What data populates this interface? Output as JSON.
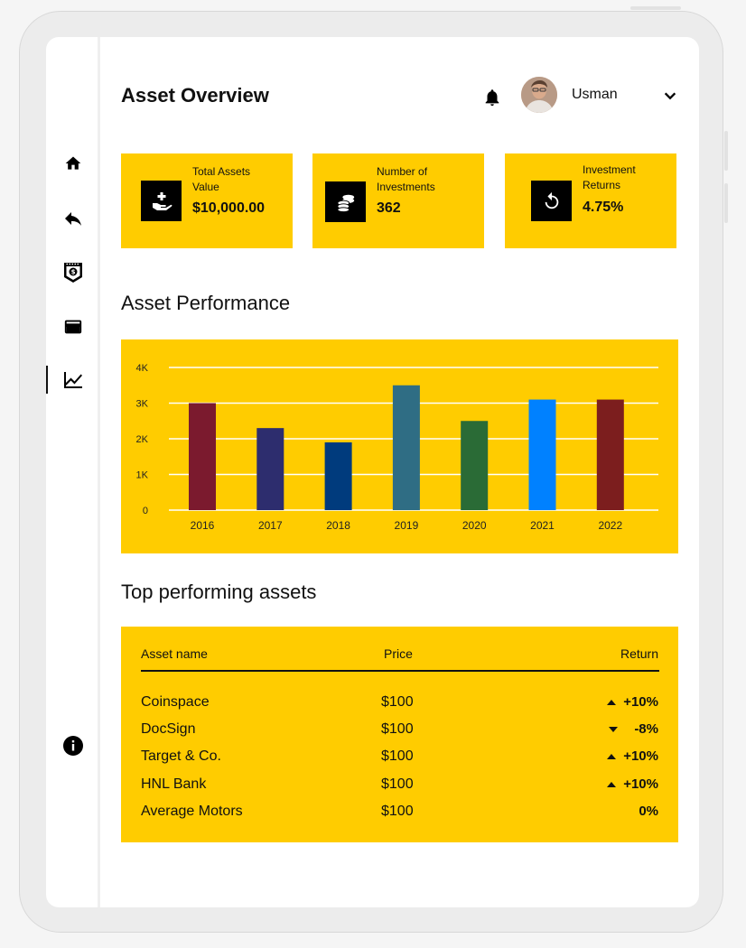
{
  "header": {
    "title": "Asset Overview",
    "user_name": "Usman"
  },
  "sidebar": {
    "items": [
      {
        "icon": "home-icon"
      },
      {
        "icon": "reply-icon"
      },
      {
        "icon": "badge-icon"
      },
      {
        "icon": "credit-card-icon"
      },
      {
        "icon": "chart-line-icon",
        "active": true
      }
    ],
    "bottom_icon": "info-icon"
  },
  "stats": [
    {
      "label_line1": "Total Assets",
      "label_line2": "Value",
      "value": "$10,000.00",
      "icon": "hand-plus-icon"
    },
    {
      "label_line1": "Number of",
      "label_line2": "Investments",
      "value": "362",
      "icon": "coins-icon"
    },
    {
      "label_line1": "Investment",
      "label_line2": "Returns",
      "value": "4.75%",
      "icon": "refresh-icon"
    }
  ],
  "performance": {
    "title": "Asset Performance"
  },
  "chart_data": {
    "type": "bar",
    "categories": [
      "2016",
      "2017",
      "2018",
      "2019",
      "2020",
      "2021",
      "2022"
    ],
    "values": [
      3000,
      2300,
      1900,
      3500,
      2500,
      3100,
      3100
    ],
    "colors": [
      "#7b1a2e",
      "#2d2d6e",
      "#003b7d",
      "#2f6d84",
      "#2a6b36",
      "#0081ff",
      "#7c1e1e"
    ],
    "y_ticks": [
      0,
      1000,
      2000,
      3000,
      4000
    ],
    "y_tick_labels": [
      "0",
      "1K",
      "2K",
      "3K",
      "4K"
    ],
    "ylim": [
      0,
      4000
    ],
    "grid": true,
    "background": "#ffcc00"
  },
  "top_assets": {
    "title": "Top performing assets",
    "columns": {
      "name": "Asset name",
      "price": "Price",
      "return": "Return"
    },
    "rows": [
      {
        "name": "Coinspace",
        "price": "$100",
        "return": "+10%",
        "trend": "up"
      },
      {
        "name": "DocSign",
        "price": "$100",
        "return": "-8%",
        "trend": "down"
      },
      {
        "name": "Target & Co.",
        "price": "$100",
        "return": "+10%",
        "trend": "up"
      },
      {
        "name": "HNL Bank",
        "price": "$100",
        "return": "+10%",
        "trend": "up"
      },
      {
        "name": "Average Motors",
        "price": "$100",
        "return": "0%",
        "trend": "none"
      }
    ]
  },
  "colors": {
    "accent": "#ffcc00",
    "text": "#111111",
    "icon_box": "#000000"
  }
}
